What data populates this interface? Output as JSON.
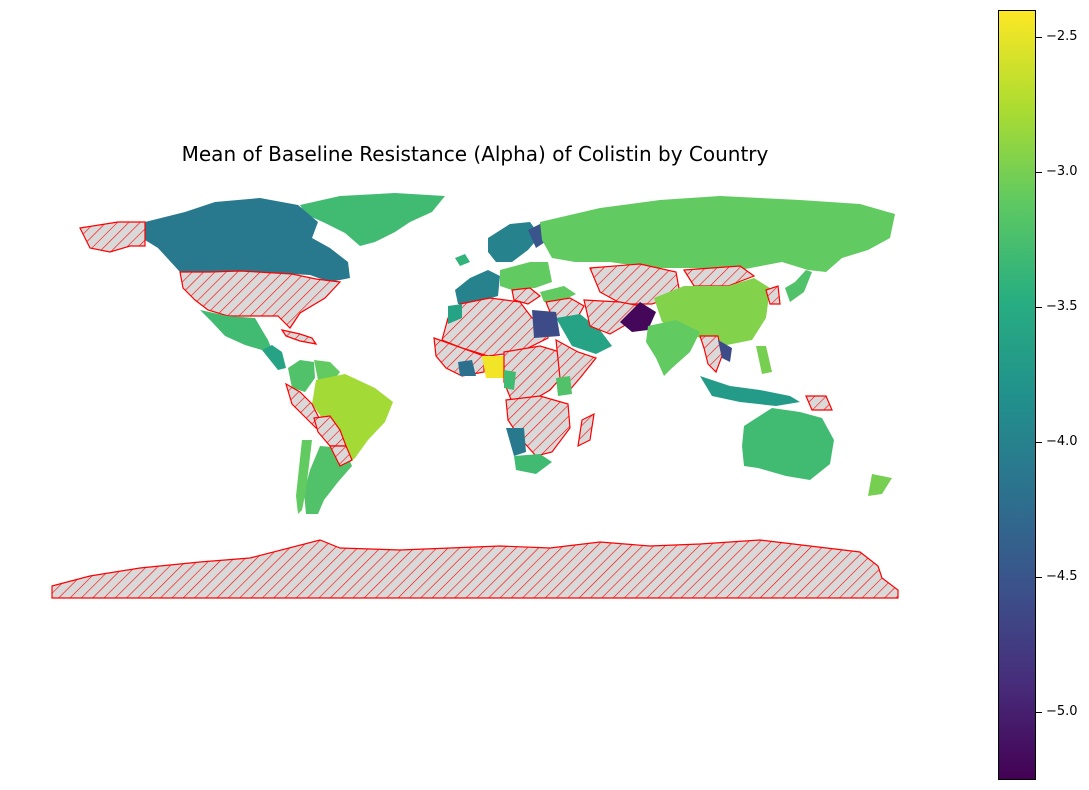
{
  "title": "Mean of Baseline Resistance (Alpha) of Colistin by Country",
  "colorbar": {
    "colormap": "viridis",
    "min": -5.25,
    "max": -2.4,
    "ticks": [
      {
        "value": -2.5,
        "label": "−2.5"
      },
      {
        "value": -3.0,
        "label": "−3.0"
      },
      {
        "value": -3.5,
        "label": "−3.5"
      },
      {
        "value": -4.0,
        "label": "−4.0"
      },
      {
        "value": -4.5,
        "label": "−4.5"
      },
      {
        "value": -5.0,
        "label": "−5.0"
      }
    ]
  },
  "no_data_style": {
    "fill": "#d9d9d9",
    "edge": "#ff0000",
    "hatch": "//"
  },
  "regions": [
    {
      "name": "Greenland",
      "value": -3.3
    },
    {
      "name": "Canada",
      "value": -4.1
    },
    {
      "name": "Alaska",
      "value": null
    },
    {
      "name": "United States",
      "value": null
    },
    {
      "name": "Mexico",
      "value": -3.3
    },
    {
      "name": "Central America",
      "value": -3.6
    },
    {
      "name": "Caribbean",
      "value": null
    },
    {
      "name": "Colombia",
      "value": -3.2
    },
    {
      "name": "Venezuela",
      "value": -3.1
    },
    {
      "name": "Brazil",
      "value": -2.8
    },
    {
      "name": "Peru",
      "value": null
    },
    {
      "name": "Bolivia",
      "value": null
    },
    {
      "name": "Argentina",
      "value": -3.2
    },
    {
      "name": "Chile",
      "value": -3.1
    },
    {
      "name": "Paraguay",
      "value": null
    },
    {
      "name": "Iceland",
      "value": -3.4
    },
    {
      "name": "Scandinavia",
      "value": -4.0
    },
    {
      "name": "Finland",
      "value": -4.5
    },
    {
      "name": "Western Europe",
      "value": -4.0
    },
    {
      "name": "Eastern Europe",
      "value": -3.1
    },
    {
      "name": "Balkans",
      "value": null
    },
    {
      "name": "Turkey",
      "value": -3.1
    },
    {
      "name": "Russia",
      "value": -3.1
    },
    {
      "name": "Kazakhstan and Central Asia",
      "value": null
    },
    {
      "name": "Mongolia",
      "value": null
    },
    {
      "name": "China",
      "value": -2.95
    },
    {
      "name": "Korea",
      "value": null
    },
    {
      "name": "Japan",
      "value": -3.2
    },
    {
      "name": "Middle East",
      "value": null
    },
    {
      "name": "Saudi Arabia",
      "value": -3.6
    },
    {
      "name": "Iran and Afghanistan",
      "value": null
    },
    {
      "name": "Pakistan",
      "value": -5.2
    },
    {
      "name": "India",
      "value": -3.1
    },
    {
      "name": "Myanmar and Thailand",
      "value": null
    },
    {
      "name": "Vietnam",
      "value": -4.6
    },
    {
      "name": "Philippines",
      "value": -3.0
    },
    {
      "name": "Indonesia",
      "value": -3.7
    },
    {
      "name": "Papua New Guinea",
      "value": null
    },
    {
      "name": "North Africa",
      "value": null
    },
    {
      "name": "Egypt",
      "value": -4.6
    },
    {
      "name": "Morocco",
      "value": -3.6
    },
    {
      "name": "West Africa",
      "value": null
    },
    {
      "name": "Ghana",
      "value": -4.2
    },
    {
      "name": "Nigeria",
      "value": -2.45
    },
    {
      "name": "Central Africa",
      "value": null
    },
    {
      "name": "Cameroon",
      "value": -3.3
    },
    {
      "name": "East Africa",
      "value": null
    },
    {
      "name": "Kenya",
      "value": -3.2
    },
    {
      "name": "Southern Africa",
      "value": null
    },
    {
      "name": "Namibia",
      "value": -4.1
    },
    {
      "name": "South Africa",
      "value": -3.3
    },
    {
      "name": "Madagascar",
      "value": null
    },
    {
      "name": "Australia",
      "value": -3.3
    },
    {
      "name": "New Zealand",
      "value": -3.0
    },
    {
      "name": "Antarctica",
      "value": null
    }
  ]
}
